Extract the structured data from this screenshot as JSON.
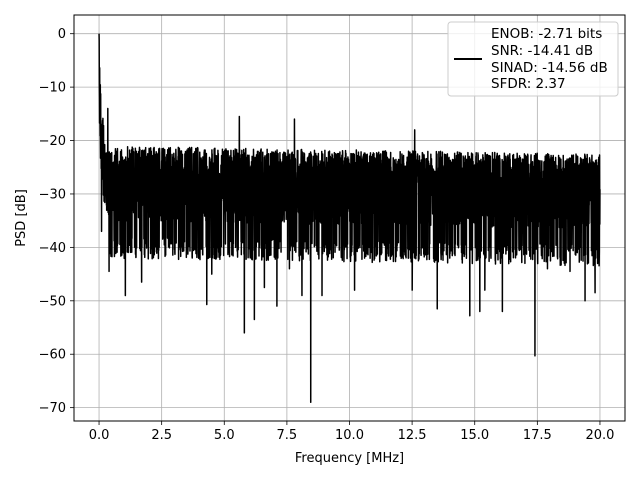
{
  "chart_data": {
    "type": "line",
    "title": "",
    "xlabel": "Frequency [MHz]",
    "ylabel": "PSD [dB]",
    "xlim": [
      -1.0,
      21.0
    ],
    "ylim": [
      -72.5,
      3.5
    ],
    "xticks": [
      0.0,
      2.5,
      5.0,
      7.5,
      10.0,
      12.5,
      15.0,
      17.5,
      20.0
    ],
    "xtick_labels": [
      "0.0",
      "2.5",
      "5.0",
      "7.5",
      "10.0",
      "12.5",
      "15.0",
      "17.5",
      "20.0"
    ],
    "yticks": [
      0,
      -10,
      -20,
      -30,
      -40,
      -50,
      -60,
      -70
    ],
    "ytick_labels": [
      "0",
      "−10",
      "−20",
      "−30",
      "−40",
      "−50",
      "−60",
      "−70"
    ],
    "grid": true,
    "legend": {
      "placement": "top-right",
      "lines": [
        "ENOB: -2.71 bits",
        "SNR: -14.41 dB",
        "SINAD: -14.56 dB",
        "SFDR: 2.37"
      ]
    },
    "series": [
      {
        "color": "#000000",
        "description": "Noisy PSD trace, ~4000 samples over 0-20 MHz; values fluctuate roughly between -40 and -17 dB with sharp downward spikes",
        "x_start": 0.0,
        "x_end": 20.0,
        "points": 4000,
        "start_profile": [
          [
            0.0,
            0.0
          ],
          [
            0.02,
            -4.0
          ],
          [
            0.05,
            -9.0
          ],
          [
            0.1,
            -13.0
          ],
          [
            0.2,
            -18.0
          ],
          [
            0.4,
            -22.0
          ]
        ],
        "typical_range": [
          -40,
          -17
        ],
        "deep_dips": [
          [
            0.1,
            -37.0
          ],
          [
            0.4,
            -44.5
          ],
          [
            1.0,
            -37.5
          ],
          [
            1.05,
            -49.0
          ],
          [
            1.7,
            -46.5
          ],
          [
            2.4,
            -40.0
          ],
          [
            4.3,
            -50.7
          ],
          [
            4.5,
            -45.0
          ],
          [
            5.8,
            -56.0
          ],
          [
            6.2,
            -53.5
          ],
          [
            6.6,
            -47.5
          ],
          [
            7.1,
            -51.0
          ],
          [
            7.6,
            -44.0
          ],
          [
            8.1,
            -49.0
          ],
          [
            8.45,
            -69.0
          ],
          [
            8.9,
            -49.0
          ],
          [
            10.2,
            -48.0
          ],
          [
            10.6,
            -42.0
          ],
          [
            12.5,
            -48.0
          ],
          [
            13.5,
            -51.5
          ],
          [
            14.0,
            -42.0
          ],
          [
            14.8,
            -52.8
          ],
          [
            15.2,
            -52.0
          ],
          [
            15.4,
            -48.0
          ],
          [
            16.1,
            -52.0
          ],
          [
            17.0,
            -43.0
          ],
          [
            17.4,
            -60.3
          ],
          [
            17.9,
            -44.0
          ],
          [
            18.8,
            -44.5
          ],
          [
            19.4,
            -50.0
          ],
          [
            19.8,
            -48.5
          ]
        ],
        "peaks": [
          [
            0.0,
            0.0
          ],
          [
            0.35,
            -14.0
          ],
          [
            5.6,
            -15.5
          ],
          [
            7.8,
            -16.0
          ],
          [
            12.6,
            -18.0
          ]
        ]
      }
    ]
  }
}
